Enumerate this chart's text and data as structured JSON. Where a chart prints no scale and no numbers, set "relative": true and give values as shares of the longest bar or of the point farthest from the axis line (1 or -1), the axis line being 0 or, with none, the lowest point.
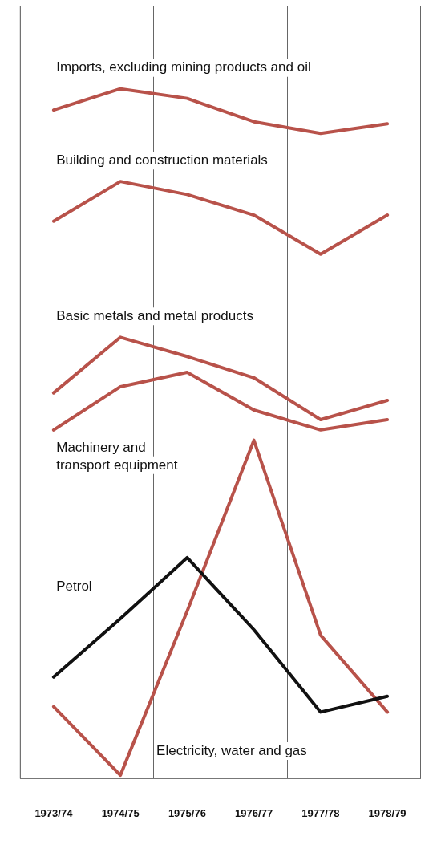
{
  "chart_data": {
    "type": "line",
    "relative": true,
    "categories": [
      "1973/74",
      "1974/75",
      "1975/76",
      "1976/77",
      "1977/78",
      "1978/79"
    ],
    "grid": "x",
    "legend": false,
    "marker": "none",
    "line_style": "solid",
    "series": [
      {
        "name": "Imports, excluding mining products and oil",
        "color": "#b8524a",
        "values": [
          0.969,
          1,
          0.986,
          0.952,
          0.935,
          0.949
        ]
      },
      {
        "name": "Building and construction materials",
        "color": "#b8524a",
        "values": [
          0.807,
          0.865,
          0.846,
          0.816,
          0.759,
          0.816
        ]
      },
      {
        "name": "Basic metals and metal products",
        "color": "#b8524a",
        "values": [
          0.557,
          0.638,
          0.61,
          0.579,
          0.518,
          0.546
        ]
      },
      {
        "name": "Machinery and transport equipment",
        "color": "#b8524a",
        "values": [
          0.503,
          0.566,
          0.587,
          0.532,
          0.503,
          0.518
        ]
      },
      {
        "name": "Petrol",
        "color": "#111111",
        "values": [
          0.143,
          0.228,
          0.317,
          0.212,
          0.092,
          0.115
        ]
      },
      {
        "name": "Electricity, water and gas",
        "color": "#b8524a",
        "values": [
          0.1,
          0,
          0.239,
          0.488,
          0.204,
          0.092
        ]
      }
    ]
  }
}
